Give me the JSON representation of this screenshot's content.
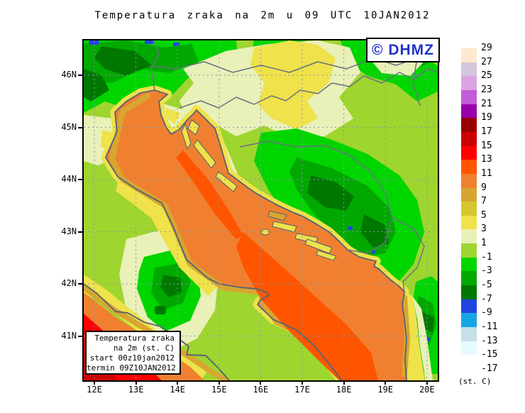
{
  "title": "Temperatura zraka na 2m u 09 UTC 10JAN2012",
  "logo": {
    "label": "© DHMZ"
  },
  "info_box": {
    "lines": [
      "Temperatura zraka",
      "na 2m (st. C)",
      "start 00z10jan2012",
      "termin 09Z10JAN2012"
    ]
  },
  "axes": {
    "lat": [
      "46N",
      "45N",
      "44N",
      "43N",
      "42N",
      "41N"
    ],
    "lon": [
      "12E",
      "13E",
      "14E",
      "15E",
      "16E",
      "17E",
      "18E",
      "19E",
      "20E"
    ]
  },
  "colorbar": {
    "unit": "(st. C)",
    "ticks": [
      "29",
      "27",
      "25",
      "23",
      "21",
      "19",
      "17",
      "15",
      "13",
      "11",
      "9",
      "7",
      "5",
      "3",
      "1",
      "-1",
      "-3",
      "-5",
      "-7",
      "-9",
      "-11",
      "-13",
      "-15",
      "-17"
    ],
    "colors": [
      "#FDE9CF",
      "#D5C5DE",
      "#DCA3E3",
      "#C45BD9",
      "#9800A8",
      "#990000",
      "#CC0000",
      "#FF0000",
      "#FF5500",
      "#F08030",
      "#D8A630",
      "#D6C72F",
      "#EFE24A",
      "#E9F0B8",
      "#9FD52F",
      "#00D500",
      "#00A800",
      "#007800",
      "#2244E0",
      "#18A5E5",
      "#C6DFE9",
      "#E6FAFF",
      "#FFFFFF"
    ]
  },
  "palette": {
    "land_chartreuse": "#9FD52F",
    "pale_yellow_green": "#E9F0B8",
    "coast_yellow": "#EFE24A",
    "olive_yellow": "#D6C72F",
    "sea_fringe_amber": "#D8A630",
    "sea_warm": "#F08030",
    "sea_core": "#FF5500",
    "hot_red": "#FF0000",
    "red_deep": "#CC0000",
    "green_bright": "#00D500",
    "green_mid": "#00A800",
    "green_dark": "#007800",
    "cold_blue": "#2244E0",
    "coastline_grey": "#5A6470",
    "border_grey": "#6B7280",
    "grid_grey": "#8899AA",
    "logo_blue": "#2233CC"
  }
}
